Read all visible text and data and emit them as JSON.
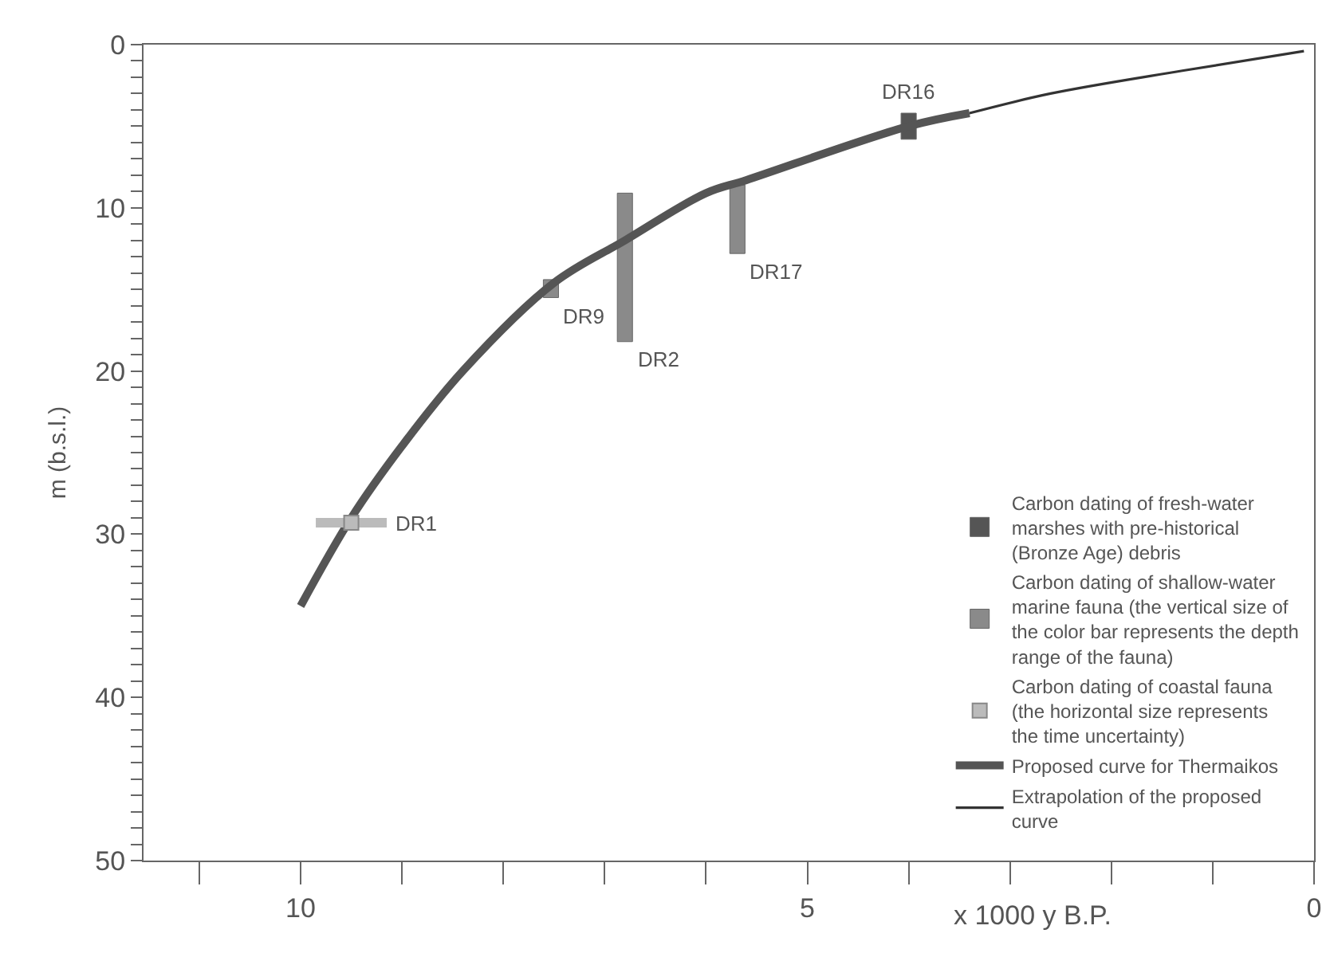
{
  "chart_data": {
    "type": "line",
    "xlabel": "x 1000 y B.P.",
    "ylabel": "m (b.s.l.)",
    "xlim": [
      11.55,
      0
    ],
    "xticks": [
      {
        "value": 11,
        "label": null
      },
      10,
      {
        "value": 9,
        "label": null
      },
      {
        "value": 8,
        "label": null
      },
      {
        "value": 7,
        "label": null
      },
      {
        "value": 6,
        "label": null
      },
      5,
      {
        "value": 4,
        "label": null
      },
      {
        "value": 3,
        "label": null
      },
      {
        "value": 2,
        "label": null
      },
      {
        "value": 1,
        "label": null
      },
      0
    ],
    "ylim": [
      50,
      0
    ],
    "yticks": [
      0,
      {
        "value": 1,
        "label": null
      },
      {
        "value": 2,
        "label": null
      },
      {
        "value": 3,
        "label": null
      },
      {
        "value": 4,
        "label": null
      },
      {
        "value": 5,
        "label": null
      },
      {
        "value": 6,
        "label": null
      },
      {
        "value": 7,
        "label": null
      },
      {
        "value": 8,
        "label": null
      },
      {
        "value": 9,
        "label": null
      },
      10,
      {
        "value": 11,
        "label": null
      },
      {
        "value": 12,
        "label": null
      },
      {
        "value": 13,
        "label": null
      },
      {
        "value": 14,
        "label": null
      },
      {
        "value": 15,
        "label": null
      },
      {
        "value": 16,
        "label": null
      },
      {
        "value": 17,
        "label": null
      },
      {
        "value": 18,
        "label": null
      },
      {
        "value": 19,
        "label": null
      },
      20,
      {
        "value": 21,
        "label": null
      },
      {
        "value": 22,
        "label": null
      },
      {
        "value": 23,
        "label": null
      },
      {
        "value": 24,
        "label": null
      },
      {
        "value": 25,
        "label": null
      },
      {
        "value": 26,
        "label": null
      },
      {
        "value": 27,
        "label": null
      },
      {
        "value": 28,
        "label": null
      },
      {
        "value": 29,
        "label": null
      },
      30,
      {
        "value": 31,
        "label": null
      },
      {
        "value": 32,
        "label": null
      },
      {
        "value": 33,
        "label": null
      },
      {
        "value": 34,
        "label": null
      },
      {
        "value": 35,
        "label": null
      },
      {
        "value": 36,
        "label": null
      },
      {
        "value": 37,
        "label": null
      },
      {
        "value": 38,
        "label": null
      },
      {
        "value": 39,
        "label": null
      },
      40,
      {
        "value": 41,
        "label": null
      },
      {
        "value": 42,
        "label": null
      },
      {
        "value": 43,
        "label": null
      },
      {
        "value": 44,
        "label": null
      },
      {
        "value": 45,
        "label": null
      },
      {
        "value": 46,
        "label": null
      },
      {
        "value": 47,
        "label": null
      },
      {
        "value": 48,
        "label": null
      },
      {
        "value": 49,
        "label": null
      },
      50
    ],
    "grid": false,
    "legend": "bottom right",
    "series": [
      {
        "type": "bar",
        "name": "Carbon dating of fresh-water marshes with pre-historical (Bronze Age) debris",
        "color": "#555555",
        "x": [
          4.0
        ],
        "base": [
          4.2
        ],
        "values": [
          1.6
        ]
      },
      {
        "type": "bar",
        "name": "Carbon dating of shallow-water marine fauna (the vertical size of the color bar represents the depth range of the fauna)",
        "color": "#8a8a8a",
        "x": [
          7.53,
          6.8,
          5.69
        ],
        "base": [
          14.4,
          9.1,
          8.6
        ],
        "values": [
          1.1,
          9.1,
          4.2
        ]
      },
      {
        "type": "scatter",
        "name": "Carbon dating of coastal fauna (the horizontal size represents the time uncertainty)",
        "color": "#bbbbbb",
        "marker": "square",
        "x": [
          9.5
        ],
        "values": [
          29.3
        ],
        "xerrors": [
          0.35
        ]
      },
      {
        "name": "Proposed curve for Thermaikos",
        "color": "#555555",
        "x": [
          10,
          9.5,
          9.0,
          8.4,
          7.5,
          6.8,
          6.0,
          5.6,
          4.0,
          3.4
        ],
        "values": [
          34.4,
          29.0,
          24.6,
          20.0,
          14.6,
          12.0,
          9.1,
          8.3,
          5.0,
          4.2
        ]
      },
      {
        "name": "Extrapolation of the proposed curve",
        "color": "#333333",
        "x": [
          3.4,
          2.6,
          1.3,
          0.1
        ],
        "values": [
          4.2,
          3.0,
          1.6,
          0.4
        ]
      }
    ],
    "annotations": [
      {
        "text": "DR1",
        "x": 9.5,
        "y": 29.3
      },
      {
        "text": "DR9",
        "x": 7.53,
        "y": 15.5
      },
      {
        "text": "DR2",
        "x": 6.8,
        "y": 18.2
      },
      {
        "text": "DR17",
        "x": 5.69,
        "y": 12.8
      },
      {
        "text": "DR16",
        "x": 4.0,
        "y": 4.2
      }
    ]
  }
}
